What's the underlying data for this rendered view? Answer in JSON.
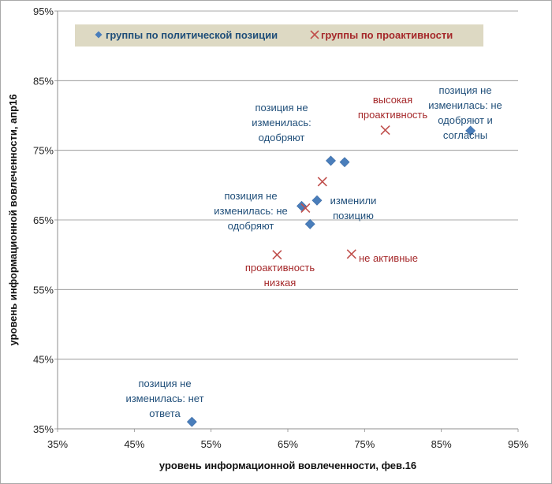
{
  "chart_data": {
    "type": "scatter",
    "xlabel": "уровень информационной  вовлеченности, фев.16",
    "ylabel": "уровень информационной вовлеченности, апр16",
    "xlim": [
      35,
      95
    ],
    "ylim": [
      35,
      95
    ],
    "x_ticks": [
      "35%",
      "45%",
      "55%",
      "65%",
      "75%",
      "85%",
      "95%"
    ],
    "y_ticks": [
      "35%",
      "45%",
      "55%",
      "65%",
      "75%",
      "85%",
      "95%"
    ],
    "grid": "horizontal",
    "legend": "top",
    "series": [
      {
        "name": "группы по политической позиции",
        "marker": "diamond",
        "color": "#4a7ebb",
        "label_color": "#1f4e79",
        "points": [
          {
            "x": 52.5,
            "y": 36.0
          },
          {
            "x": 66.8,
            "y": 67.0
          },
          {
            "x": 67.9,
            "y": 64.4
          },
          {
            "x": 68.8,
            "y": 67.8
          },
          {
            "x": 70.6,
            "y": 73.5
          },
          {
            "x": 72.4,
            "y": 73.3
          },
          {
            "x": 88.8,
            "y": 77.8
          }
        ]
      },
      {
        "name": "группы по проактивности",
        "marker": "x",
        "color": "#c0504d",
        "label_color": "#a5282a",
        "points": [
          {
            "x": 63.6,
            "y": 60.0
          },
          {
            "x": 67.3,
            "y": 66.7
          },
          {
            "x": 69.5,
            "y": 70.5
          },
          {
            "x": 73.3,
            "y": 60.1
          },
          {
            "x": 77.7,
            "y": 77.9
          }
        ]
      }
    ],
    "annotations": [
      {
        "series": 0,
        "lines": [
          "позиция не",
          "изменилась:",
          "одобряют"
        ]
      },
      {
        "series": 0,
        "lines": [
          "позиция не",
          "изменилась: не",
          "одобряют"
        ]
      },
      {
        "series": 0,
        "lines": [
          "изменили",
          "позицию"
        ]
      },
      {
        "series": 0,
        "lines": [
          "позиция не",
          "изменилась: не",
          "одобряют и",
          "согласны"
        ]
      },
      {
        "series": 0,
        "lines": [
          "позиция не",
          "изменилась: нет",
          "ответа"
        ]
      },
      {
        "series": 1,
        "lines": [
          "высокая",
          "проактивность"
        ]
      },
      {
        "series": 1,
        "lines": [
          "проактивность",
          "низкая"
        ]
      },
      {
        "series": 1,
        "lines": [
          "не активные"
        ]
      }
    ]
  }
}
